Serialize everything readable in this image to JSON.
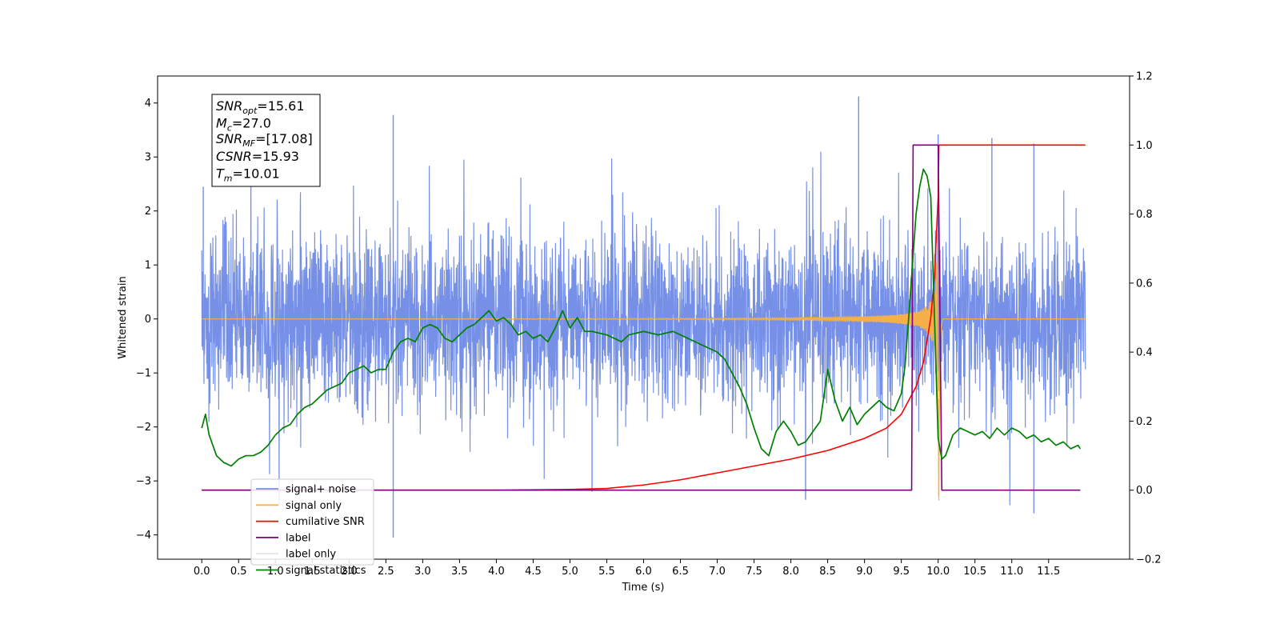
{
  "chart_data": {
    "type": "line",
    "title": "",
    "xlabel": "Time (s)",
    "ylabel": "Whitened strain",
    "y2label": "",
    "xlim": [
      -0.6,
      12.6
    ],
    "ylim": [
      -4.45,
      4.5
    ],
    "y2lim": [
      -0.2,
      1.2
    ],
    "xticks": [
      0.0,
      0.5,
      1.0,
      1.5,
      2.0,
      2.5,
      3.0,
      3.5,
      4.0,
      4.5,
      5.0,
      5.5,
      6.0,
      6.5,
      7.0,
      7.5,
      8.0,
      8.5,
      9.0,
      9.5,
      10.0,
      10.5,
      11.0,
      11.5
    ],
    "xtick_labels": [
      "0.0",
      "0.5",
      "1.0",
      "1.5",
      "2.0",
      "2.5",
      "3.0",
      "3.5",
      "4.0",
      "4.5",
      "5.0",
      "5.5",
      "6.0",
      "6.5",
      "7.0",
      "7.5",
      "8.0",
      "8.5",
      "9.0",
      "9.5",
      "10.0",
      "10.5",
      "11.0",
      "11.5"
    ],
    "yticks": [
      -4,
      -3,
      -2,
      -1,
      0,
      1,
      2,
      3,
      4
    ],
    "ytick_labels": [
      "−4",
      "−3",
      "−2",
      "−1",
      "0",
      "1",
      "2",
      "3",
      "4"
    ],
    "y2ticks": [
      -0.2,
      0.0,
      0.2,
      0.4,
      0.6,
      0.8,
      1.0,
      1.2
    ],
    "y2tick_labels": [
      "−0.2",
      "0.0",
      "0.2",
      "0.4",
      "0.6",
      "0.8",
      "1.0",
      "1.2"
    ],
    "grid": false,
    "legend_position": "lower-left",
    "annotation_box": {
      "lines": [
        {
          "base": "SNR",
          "sub": "opt",
          "value": "=15.61"
        },
        {
          "base": "M",
          "sub": "c",
          "value": "=27.0"
        },
        {
          "base": "SNR",
          "sub": "MF",
          "value": "=[17.08]"
        },
        {
          "base": "CSNR",
          "sub": "",
          "value": "=15.93"
        },
        {
          "base": "T",
          "sub": "m",
          "value": "=10.01"
        }
      ]
    },
    "series": [
      {
        "name": "signal+ noise",
        "axis": "left",
        "color": "#7590e6",
        "noise": {
          "x_start": 0.0,
          "x_end": 12.0,
          "band_low": -1.6,
          "band_high": 1.5,
          "peak_low": -4.05,
          "peak_high": 4.1
        },
        "spikes": [
          [
            0.02,
            2.45
          ],
          [
            2.6,
            3.78
          ],
          [
            2.6,
            -4.05
          ],
          [
            8.92,
            4.12
          ],
          [
            10.0,
            3.42
          ],
          [
            10.73,
            3.35
          ],
          [
            11.3,
            -3.6
          ],
          [
            11.3,
            3.25
          ],
          [
            5.3,
            -3.2
          ],
          [
            8.2,
            -3.35
          ]
        ]
      },
      {
        "name": "signal only",
        "axis": "left",
        "color": "#f5b04a",
        "chirp": {
          "x_start": 0.0,
          "x_merge": 10.01,
          "x_end": 12.0,
          "amp_merge": 2.6,
          "min_dip": -3.5
        }
      },
      {
        "name": "cumilative SNR",
        "axis": "right",
        "color": "#ff0000",
        "x": [
          0.0,
          4.0,
          5.0,
          5.5,
          6.0,
          6.5,
          7.0,
          7.5,
          8.0,
          8.5,
          9.0,
          9.3,
          9.5,
          9.7,
          9.8,
          9.9,
          9.95,
          10.0,
          10.01,
          12.0
        ],
        "values": [
          0.0,
          0.0,
          0.002,
          0.005,
          0.015,
          0.03,
          0.05,
          0.07,
          0.09,
          0.115,
          0.15,
          0.18,
          0.22,
          0.3,
          0.37,
          0.5,
          0.62,
          0.85,
          1.0,
          1.0
        ]
      },
      {
        "name": "label",
        "axis": "right",
        "color": "#800080",
        "x": [
          0.0,
          9.64,
          9.66,
          10.0,
          10.05,
          11.93
        ],
        "values": [
          0.0,
          0.0,
          1.0,
          1.0,
          0.0,
          0.0
        ]
      },
      {
        "name": "label only",
        "axis": "right",
        "color": "#e6e6e6",
        "x": [],
        "values": []
      },
      {
        "name": "signal statistics",
        "axis": "right",
        "color": "#008000",
        "x": [
          0.0,
          0.05,
          0.1,
          0.2,
          0.3,
          0.4,
          0.5,
          0.6,
          0.7,
          0.8,
          0.9,
          1.0,
          1.1,
          1.2,
          1.3,
          1.4,
          1.5,
          1.6,
          1.7,
          1.8,
          1.9,
          2.0,
          2.1,
          2.2,
          2.3,
          2.4,
          2.5,
          2.6,
          2.7,
          2.8,
          2.9,
          3.0,
          3.1,
          3.2,
          3.3,
          3.4,
          3.5,
          3.6,
          3.7,
          3.8,
          3.9,
          4.0,
          4.1,
          4.2,
          4.3,
          4.4,
          4.5,
          4.6,
          4.7,
          4.8,
          4.9,
          5.0,
          5.1,
          5.2,
          5.3,
          5.5,
          5.7,
          5.8,
          6.0,
          6.2,
          6.4,
          6.6,
          6.8,
          7.0,
          7.1,
          7.2,
          7.3,
          7.4,
          7.5,
          7.6,
          7.7,
          7.8,
          7.9,
          8.0,
          8.1,
          8.2,
          8.3,
          8.4,
          8.5,
          8.6,
          8.7,
          8.8,
          8.9,
          9.0,
          9.1,
          9.2,
          9.3,
          9.4,
          9.5,
          9.55,
          9.6,
          9.65,
          9.7,
          9.75,
          9.8,
          9.85,
          9.9,
          9.95,
          10.0,
          10.05,
          10.1,
          10.2,
          10.3,
          10.4,
          10.5,
          10.6,
          10.7,
          10.8,
          10.9,
          11.0,
          11.1,
          11.2,
          11.3,
          11.4,
          11.5,
          11.6,
          11.7,
          11.8,
          11.9,
          11.93
        ],
        "values": [
          0.18,
          0.22,
          0.16,
          0.1,
          0.08,
          0.07,
          0.09,
          0.1,
          0.1,
          0.11,
          0.13,
          0.16,
          0.18,
          0.19,
          0.22,
          0.24,
          0.25,
          0.27,
          0.29,
          0.3,
          0.31,
          0.34,
          0.35,
          0.36,
          0.34,
          0.35,
          0.35,
          0.4,
          0.43,
          0.44,
          0.43,
          0.47,
          0.48,
          0.47,
          0.44,
          0.43,
          0.45,
          0.47,
          0.48,
          0.5,
          0.52,
          0.49,
          0.5,
          0.48,
          0.45,
          0.46,
          0.44,
          0.45,
          0.43,
          0.47,
          0.52,
          0.47,
          0.5,
          0.46,
          0.46,
          0.45,
          0.43,
          0.45,
          0.46,
          0.45,
          0.46,
          0.44,
          0.42,
          0.4,
          0.38,
          0.34,
          0.3,
          0.25,
          0.18,
          0.12,
          0.1,
          0.17,
          0.2,
          0.17,
          0.13,
          0.14,
          0.17,
          0.2,
          0.35,
          0.26,
          0.2,
          0.24,
          0.19,
          0.22,
          0.24,
          0.26,
          0.24,
          0.23,
          0.28,
          0.36,
          0.5,
          0.65,
          0.8,
          0.88,
          0.93,
          0.91,
          0.85,
          0.5,
          0.15,
          0.09,
          0.1,
          0.16,
          0.18,
          0.17,
          0.16,
          0.17,
          0.15,
          0.18,
          0.16,
          0.18,
          0.17,
          0.15,
          0.16,
          0.14,
          0.15,
          0.13,
          0.14,
          0.12,
          0.13,
          0.12
        ]
      }
    ]
  }
}
